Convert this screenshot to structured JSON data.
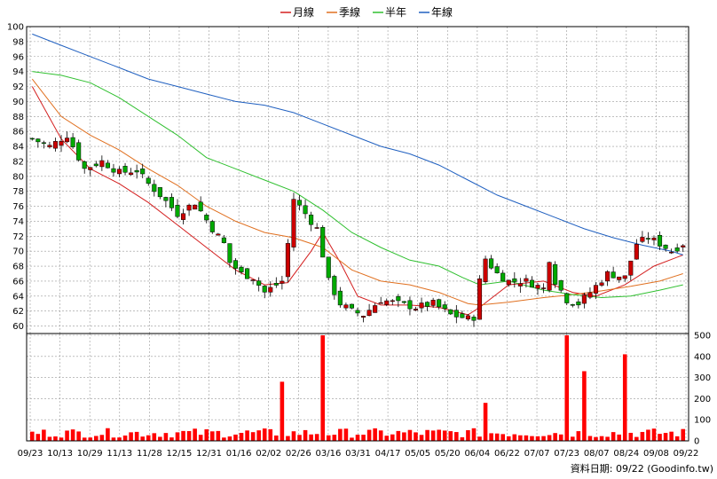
{
  "legend": [
    {
      "name": "月線",
      "color": "#d42020"
    },
    {
      "name": "季線",
      "color": "#e07020"
    },
    {
      "name": "半年",
      "color": "#30c030"
    },
    {
      "name": "年線",
      "color": "#2060c0"
    }
  ],
  "source_label": "資料日期: 09/22  (Goodinfo.tw)",
  "colors": {
    "up": "#cc0000",
    "down": "#00aa00",
    "volume": "#ff0000",
    "grid": "#999999"
  },
  "chart_data": [
    {
      "type": "candlestick",
      "title": "",
      "x_ticks": [
        "09/23",
        "10/13",
        "10/29",
        "11/13",
        "11/28",
        "12/15",
        "12/31",
        "01/16",
        "02/02",
        "02/26",
        "03/16",
        "03/31",
        "04/17",
        "05/05",
        "05/20",
        "06/04",
        "06/22",
        "07/07",
        "07/23",
        "08/07",
        "08/24",
        "09/08",
        "09/22"
      ],
      "y_ticks": [
        60,
        62,
        64,
        66,
        68,
        70,
        72,
        74,
        76,
        78,
        80,
        82,
        84,
        86,
        88,
        90,
        92,
        94,
        96,
        98,
        100
      ],
      "ylim": [
        59,
        100
      ],
      "grid": true,
      "legend_position": "top-center",
      "close_anchors": [
        [
          0,
          85
        ],
        [
          3,
          84
        ],
        [
          6,
          85.5
        ],
        [
          9,
          81
        ],
        [
          12,
          82
        ],
        [
          15,
          80.5
        ],
        [
          18,
          80.8
        ],
        [
          20,
          79
        ],
        [
          22,
          77.5
        ],
        [
          25,
          75
        ],
        [
          28,
          76.5
        ],
        [
          31,
          73
        ],
        [
          33,
          71
        ],
        [
          34,
          68.5
        ],
        [
          36,
          67
        ],
        [
          38,
          66.5
        ],
        [
          40,
          64.5
        ],
        [
          43,
          66
        ],
        [
          44,
          71
        ],
        [
          45,
          77
        ],
        [
          47,
          75
        ],
        [
          49,
          73
        ],
        [
          51,
          66
        ],
        [
          53,
          63
        ],
        [
          55,
          62
        ],
        [
          57,
          61.5
        ],
        [
          60,
          63.5
        ],
        [
          63,
          63
        ],
        [
          66,
          62.5
        ],
        [
          69,
          63
        ],
        [
          72,
          61.5
        ],
        [
          75,
          61
        ],
        [
          76,
          61.2
        ],
        [
          77,
          66
        ],
        [
          78,
          69
        ],
        [
          80,
          67
        ],
        [
          82,
          66
        ],
        [
          85,
          66
        ],
        [
          88,
          65
        ],
        [
          89,
          69
        ],
        [
          90,
          66
        ],
        [
          92,
          63.5
        ],
        [
          94,
          63
        ],
        [
          96,
          64.5
        ],
        [
          99,
          67
        ],
        [
          102,
          66.5
        ],
        [
          104,
          71
        ],
        [
          106,
          71.8
        ],
        [
          108,
          71
        ],
        [
          110,
          70
        ],
        [
          112,
          71
        ]
      ],
      "volume": {
        "yticks": [
          0,
          100,
          200,
          300,
          400,
          500
        ],
        "ylim": [
          0,
          500
        ],
        "spikes": [
          [
            43,
            280
          ],
          [
            50,
            500
          ],
          [
            78,
            180
          ],
          [
            92,
            500
          ],
          [
            95,
            330
          ],
          [
            102,
            410
          ]
        ]
      },
      "moving_averages": [
        {
          "name": "月線",
          "values": [
            [
              0,
              92
            ],
            [
              5,
              85
            ],
            [
              10,
              81
            ],
            [
              15,
              79
            ],
            [
              20,
              76.5
            ],
            [
              25,
              73.5
            ],
            [
              30,
              70.5
            ],
            [
              35,
              67.5
            ],
            [
              40,
              65.5
            ],
            [
              44,
              65.8
            ],
            [
              48,
              70
            ],
            [
              50,
              72.5
            ],
            [
              53,
              68.5
            ],
            [
              56,
              64
            ],
            [
              60,
              62.8
            ],
            [
              65,
              62.8
            ],
            [
              70,
              62.5
            ],
            [
              75,
              61.5
            ],
            [
              77,
              62.5
            ],
            [
              82,
              65.5
            ],
            [
              88,
              66
            ],
            [
              93,
              64.5
            ],
            [
              97,
              64
            ],
            [
              102,
              65.5
            ],
            [
              107,
              68
            ],
            [
              112,
              69.5
            ]
          ]
        },
        {
          "name": "季線",
          "values": [
            [
              0,
              93
            ],
            [
              5,
              88
            ],
            [
              10,
              85.5
            ],
            [
              15,
              83.5
            ],
            [
              20,
              81
            ],
            [
              25,
              78.8
            ],
            [
              30,
              76
            ],
            [
              35,
              74
            ],
            [
              40,
              72.5
            ],
            [
              45,
              71.8
            ],
            [
              50,
              70.5
            ],
            [
              55,
              67.5
            ],
            [
              60,
              66
            ],
            [
              65,
              65.5
            ],
            [
              70,
              64.5
            ],
            [
              75,
              63
            ],
            [
              77,
              62.8
            ],
            [
              82,
              63.2
            ],
            [
              88,
              63.8
            ],
            [
              93,
              64.2
            ],
            [
              98,
              64.7
            ],
            [
              103,
              65.3
            ],
            [
              108,
              66
            ],
            [
              112,
              67
            ]
          ]
        },
        {
          "name": "半年",
          "values": [
            [
              0,
              94
            ],
            [
              5,
              93.5
            ],
            [
              10,
              92.5
            ],
            [
              15,
              90.5
            ],
            [
              20,
              88
            ],
            [
              25,
              85.5
            ],
            [
              30,
              82.5
            ],
            [
              35,
              81
            ],
            [
              40,
              79.5
            ],
            [
              45,
              78
            ],
            [
              50,
              75.5
            ],
            [
              55,
              72.5
            ],
            [
              60,
              70.5
            ],
            [
              65,
              68.8
            ],
            [
              70,
              68
            ],
            [
              74,
              66.5
            ],
            [
              77,
              65.5
            ],
            [
              82,
              66
            ],
            [
              88,
              64.8
            ],
            [
              93,
              64.2
            ],
            [
              98,
              63.8
            ],
            [
              103,
              64
            ],
            [
              108,
              64.8
            ],
            [
              112,
              65.5
            ]
          ]
        },
        {
          "name": "年線",
          "values": [
            [
              0,
              99
            ],
            [
              5,
              97.5
            ],
            [
              10,
              96
            ],
            [
              15,
              94.5
            ],
            [
              20,
              93
            ],
            [
              25,
              92
            ],
            [
              30,
              91
            ],
            [
              35,
              90
            ],
            [
              40,
              89.5
            ],
            [
              45,
              88.5
            ],
            [
              50,
              87
            ],
            [
              55,
              85.5
            ],
            [
              60,
              84
            ],
            [
              65,
              83
            ],
            [
              70,
              81.5
            ],
            [
              75,
              79.5
            ],
            [
              80,
              77.5
            ],
            [
              85,
              76
            ],
            [
              90,
              74.5
            ],
            [
              95,
              73
            ],
            [
              100,
              71.8
            ],
            [
              105,
              70.8
            ],
            [
              110,
              70
            ],
            [
              112,
              69.5
            ]
          ]
        }
      ]
    }
  ]
}
